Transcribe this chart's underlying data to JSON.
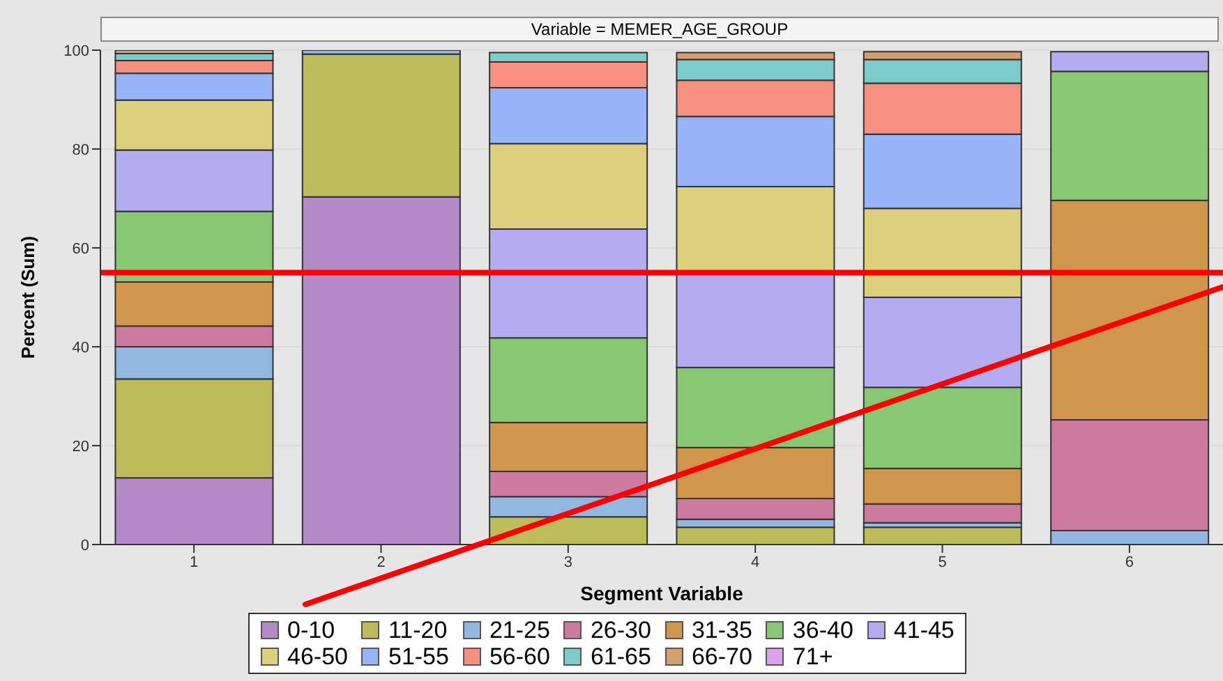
{
  "chart_data": {
    "type": "bar",
    "title": "Variable = MEMER_AGE_GROUP",
    "xlabel": "Segment Variable",
    "ylabel": "Percent (Sum)",
    "categories": [
      "1",
      "2",
      "3",
      "4",
      "5",
      "6"
    ],
    "stacked": true,
    "ylim": [
      0,
      100
    ],
    "yticks": [
      0,
      20,
      40,
      60,
      80,
      100
    ],
    "grid": "y",
    "legend": "bottom",
    "ref_lines": [
      {
        "axis": "y",
        "value": 55,
        "color": "#ff0000"
      }
    ],
    "series": [
      {
        "name": "0-10",
        "color": "#b48ac8",
        "values": [
          13.5,
          70.3,
          null,
          null,
          null,
          0
        ]
      },
      {
        "name": "11-20",
        "color": "#bcbc5a",
        "values": [
          20,
          28.9,
          5.6,
          3.5,
          3.5,
          null
        ]
      },
      {
        "name": "21-25",
        "color": "#90b8e0",
        "values": [
          6.5,
          0.8,
          4.1,
          1.6,
          0.9,
          2.8
        ]
      },
      {
        "name": "26-30",
        "color": "#cc7aa0",
        "values": [
          4.2,
          0,
          5.1,
          4.2,
          3.8,
          22.4
        ]
      },
      {
        "name": "31-35",
        "color": "#d0964c",
        "values": [
          8.9,
          0,
          9.9,
          10.3,
          7.2,
          44.4
        ]
      },
      {
        "name": "36-40",
        "color": "#88c872",
        "values": [
          14.3,
          0,
          17.1,
          16.2,
          16.4,
          26.1
        ]
      },
      {
        "name": "41-45",
        "color": "#b4acf0",
        "values": [
          12.4,
          0,
          22.0,
          19.0,
          18.2,
          4.0
        ]
      },
      {
        "name": "46-50",
        "color": "#dcd07c",
        "values": [
          10.1,
          0,
          17.3,
          17.6,
          18.0,
          0
        ]
      },
      {
        "name": "51-55",
        "color": "#98b4f8",
        "values": [
          5.4,
          0,
          11.3,
          14.2,
          15.0,
          0
        ]
      },
      {
        "name": "56-60",
        "color": "#f89080",
        "values": [
          2.6,
          0,
          5.2,
          7.3,
          10.3,
          0
        ]
      },
      {
        "name": "61-65",
        "color": "#7ccccc",
        "values": [
          1.4,
          0,
          1.9,
          4.2,
          4.8,
          0
        ]
      },
      {
        "name": "66-70",
        "color": "#d4a070",
        "values": [
          0.7,
          0,
          null,
          1.4,
          1.6,
          0
        ]
      },
      {
        "name": "71+",
        "color": "#e0a0f0",
        "values": [
          0,
          0,
          0,
          0,
          0,
          0
        ]
      }
    ]
  }
}
